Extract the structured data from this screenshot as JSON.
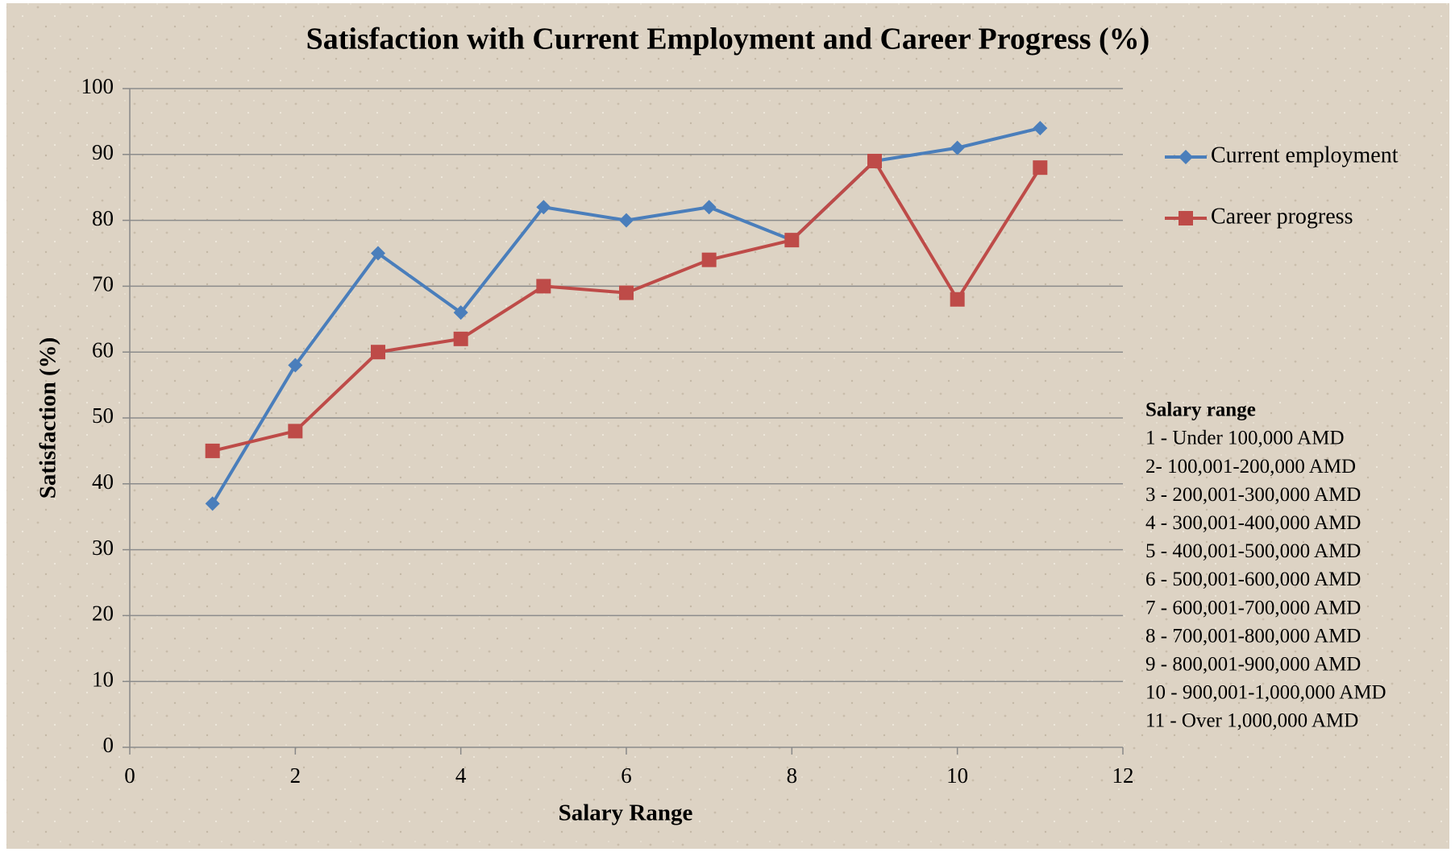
{
  "chart_data": {
    "type": "line",
    "title": "Satisfaction with Current Employment and Career Progress (%)",
    "x_label": "Salary Range",
    "y_label": "Satisfaction (%)",
    "x": [
      1,
      2,
      3,
      4,
      5,
      6,
      7,
      8,
      9,
      10,
      11
    ],
    "series": [
      {
        "name": "Current employment",
        "color": "#4a7ebb",
        "marker": "diamond",
        "values": [
          37,
          58,
          75,
          66,
          82,
          80,
          82,
          77,
          89,
          91,
          94
        ]
      },
      {
        "name": "Career progress",
        "color": "#be4b48",
        "marker": "square",
        "values": [
          45,
          48,
          60,
          62,
          70,
          69,
          74,
          77,
          89,
          68,
          88
        ]
      }
    ],
    "xlim": [
      0,
      12
    ],
    "xticks": [
      0,
      2,
      4,
      6,
      8,
      10,
      12
    ],
    "ylim": [
      0,
      100
    ],
    "yticks": [
      0,
      10,
      20,
      30,
      40,
      50,
      60,
      70,
      80,
      90,
      100
    ],
    "grid": true,
    "legend": "right",
    "annotation": {
      "title": "Salary range",
      "lines": [
        "1 - Under 100,000 AMD",
        "2- 100,001-200,000 AMD",
        "3 - 200,001-300,000 AMD",
        "4 - 300,001-400,000 AMD",
        "5 - 400,001-500,000 AMD",
        "6 - 500,001-600,000 AMD",
        "7 - 600,001-700,000 AMD",
        "8 - 700,001-800,000 AMD",
        "9 - 800,001-900,000 AMD",
        "10 - 900,001-1,000,000 AMD",
        "11 - Over 1,000,000 AMD"
      ]
    }
  }
}
